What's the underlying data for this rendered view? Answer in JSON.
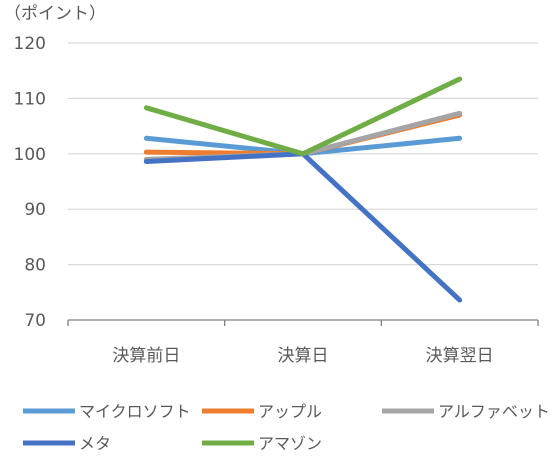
{
  "chart_data": {
    "type": "line",
    "unit_label": "（ポイント）",
    "categories": [
      "決算前日",
      "決算日",
      "決算翌日"
    ],
    "ylim": [
      70,
      120
    ],
    "yticks": [
      70,
      80,
      90,
      100,
      110,
      120
    ],
    "grid": true,
    "legend_position": "bottom",
    "series": [
      {
        "name": "マイクロソフト",
        "color": "#5B9BD5",
        "values": [
          102.8,
          100,
          102.8
        ]
      },
      {
        "name": "アップル",
        "color": "#ED7D31",
        "values": [
          100.3,
          100,
          107.0
        ]
      },
      {
        "name": "アルファベット",
        "color": "#A5A5A5",
        "values": [
          99.0,
          100,
          107.3
        ]
      },
      {
        "name": "メタ",
        "color": "#4472C4",
        "values": [
          98.6,
          100,
          73.6
        ]
      },
      {
        "name": "アマゾン",
        "color": "#70AD47",
        "values": [
          108.3,
          100,
          113.5
        ]
      }
    ]
  }
}
